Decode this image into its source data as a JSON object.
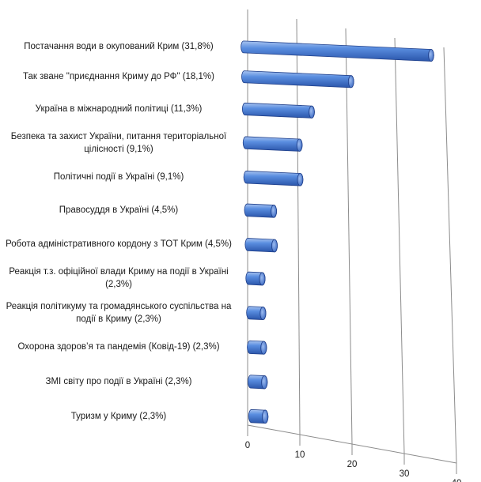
{
  "chart_data": {
    "type": "bar",
    "orientation": "horizontal",
    "three_d": true,
    "bar_color": "#4a7fd4",
    "bar_edge_color": "#1f3f8a",
    "grid": true,
    "categories": [
      "Постачання води в окупований Крим (31,8%)",
      "Так зване \"приєднання Криму до РФ\" (18,1%)",
      "Україна в  міжнародний політиці (11,3%)",
      "Безпека та захист  України, питання територіальної цілісності (9,1%)",
      "Політичні події в Україні (9,1%)",
      "Правосуддя в Україні (4,5%)",
      "Робота адміністративного кордону з ТОТ Крим (4,5%)",
      "Реакція т.з. офіційної влади Криму на події в Україні (2,3%)",
      "Реакція політикуму та громадянського суспільства на події в Криму (2,3%)",
      "Охорона здоров’я та пандемія (Ковід-19) (2,3%)",
      "ЗМІ світу про події в Україні (2,3%)",
      "Туризм у Криму (2,3%)"
    ],
    "values": [
      31.8,
      18.1,
      11.3,
      9.1,
      9.1,
      4.5,
      4.5,
      2.3,
      2.3,
      2.3,
      2.3,
      2.3
    ],
    "xlim": [
      0,
      40
    ],
    "xticks": [
      "0",
      "10",
      "20",
      "30",
      "40"
    ]
  }
}
